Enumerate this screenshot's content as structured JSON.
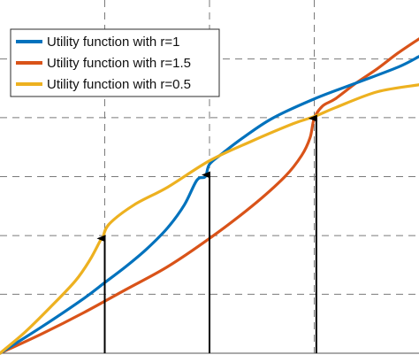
{
  "chart_data": {
    "type": "line",
    "title": "",
    "xlabel": "",
    "ylabel": "",
    "xlim": [
      0,
      1
    ],
    "ylim": [
      0,
      1
    ],
    "grid": true,
    "legend_position": "top-left",
    "x_gridlines": [
      0.25,
      0.5,
      0.75
    ],
    "y_gridlines": [
      0.167,
      0.333,
      0.5,
      0.667,
      0.833
    ],
    "series": [
      {
        "name": "Utility function with r=1",
        "color": "#0072BD",
        "points": [
          [
            0,
            0
          ],
          [
            0.1,
            0.075
          ],
          [
            0.2,
            0.155
          ],
          [
            0.25,
            0.2
          ],
          [
            0.3,
            0.245
          ],
          [
            0.35,
            0.295
          ],
          [
            0.4,
            0.355
          ],
          [
            0.44,
            0.42
          ],
          [
            0.47,
            0.49
          ],
          [
            0.49,
            0.5
          ],
          [
            0.5,
            0.535
          ],
          [
            0.53,
            0.565
          ],
          [
            0.58,
            0.61
          ],
          [
            0.65,
            0.665
          ],
          [
            0.75,
            0.72
          ],
          [
            0.85,
            0.765
          ],
          [
            0.95,
            0.81
          ],
          [
            1,
            0.84
          ]
        ]
      },
      {
        "name": "Utility function with r=1.5",
        "color": "#D95319",
        "points": [
          [
            0,
            0
          ],
          [
            0.1,
            0.055
          ],
          [
            0.2,
            0.115
          ],
          [
            0.3,
            0.18
          ],
          [
            0.4,
            0.245
          ],
          [
            0.5,
            0.325
          ],
          [
            0.6,
            0.415
          ],
          [
            0.68,
            0.5
          ],
          [
            0.72,
            0.56
          ],
          [
            0.74,
            0.61
          ],
          [
            0.75,
            0.665
          ],
          [
            0.77,
            0.7
          ],
          [
            0.8,
            0.72
          ],
          [
            0.85,
            0.765
          ],
          [
            0.9,
            0.805
          ],
          [
            0.95,
            0.85
          ],
          [
            1,
            0.89
          ]
        ]
      },
      {
        "name": "Utility function with r=0.5",
        "color": "#EDB120",
        "points": [
          [
            0,
            0
          ],
          [
            0.06,
            0.06
          ],
          [
            0.12,
            0.13
          ],
          [
            0.18,
            0.205
          ],
          [
            0.215,
            0.265
          ],
          [
            0.24,
            0.32
          ],
          [
            0.245,
            0.325
          ],
          [
            0.26,
            0.365
          ],
          [
            0.32,
            0.42
          ],
          [
            0.4,
            0.47
          ],
          [
            0.5,
            0.545
          ],
          [
            0.6,
            0.6
          ],
          [
            0.7,
            0.65
          ],
          [
            0.75,
            0.67
          ],
          [
            0.8,
            0.695
          ],
          [
            0.9,
            0.74
          ],
          [
            1,
            0.76
          ]
        ]
      }
    ],
    "arrows": [
      {
        "x": 0.25,
        "y_from": 0,
        "y_to": 0.325
      },
      {
        "x": 0.5,
        "y_from": 0,
        "y_to": 0.505
      },
      {
        "x": 0.755,
        "y_from": 0,
        "y_to": 0.665
      }
    ]
  }
}
